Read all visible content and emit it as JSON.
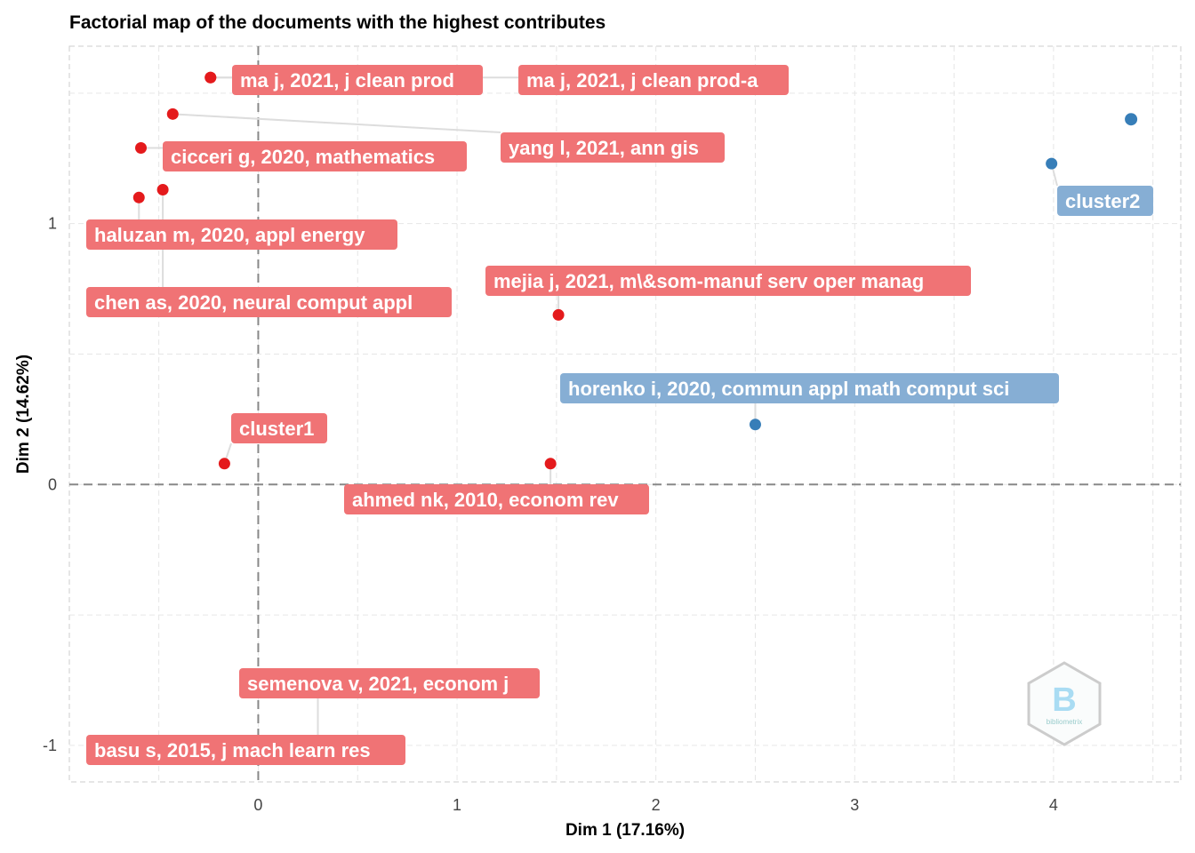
{
  "chart_data": {
    "type": "scatter",
    "title": "Factorial map of the documents with the highest contributes",
    "xlabel": "Dim 1 (17.16%)",
    "ylabel": "Dim 2 (14.62%)",
    "xlim": [
      -0.95,
      4.64
    ],
    "ylim": [
      -1.14,
      1.68
    ],
    "xticks": [
      0,
      1,
      2,
      3,
      4
    ],
    "yticks": [
      -1,
      0,
      1
    ],
    "grid": true,
    "colors": {
      "cluster1": "#E41A1C",
      "cluster2": "#377EB8",
      "label1": "#F07375",
      "label2": "#86AED4"
    },
    "points": [
      {
        "label": "ma j, 2021, j clean prod",
        "x": -0.24,
        "y": 1.56,
        "cluster": 1
      },
      {
        "label": "ma j, 2021, j clean prod-a",
        "x": -0.24,
        "y": 1.56,
        "cluster": 1
      },
      {
        "label": "yang l, 2021, ann gis",
        "x": -0.43,
        "y": 1.42,
        "cluster": 1
      },
      {
        "label": "cicceri g, 2020, mathematics",
        "x": -0.59,
        "y": 1.29,
        "cluster": 1
      },
      {
        "label": "haluzan m, 2020, appl energy",
        "x": -0.6,
        "y": 1.1,
        "cluster": 1
      },
      {
        "label": "chen as, 2020, neural comput appl",
        "x": -0.48,
        "y": 1.13,
        "cluster": 1
      },
      {
        "label": "mejia j, 2021, m\\&som-manuf serv oper manag",
        "x": 1.51,
        "y": 0.65,
        "cluster": 1
      },
      {
        "label": "horenko i, 2020, commun appl math comput sci",
        "x": 2.5,
        "y": 0.23,
        "cluster": 2
      },
      {
        "label": "cluster1",
        "x": -0.17,
        "y": 0.08,
        "cluster": 1
      },
      {
        "label": "ahmed nk, 2010, econom rev",
        "x": 1.47,
        "y": 0.08,
        "cluster": 1
      },
      {
        "label": "semenova v, 2021, econom j",
        "x": 0.3,
        "y": -1.02,
        "cluster": 1
      },
      {
        "label": "basu s, 2015, j mach learn res",
        "x": 0.3,
        "y": -1.02,
        "cluster": 1
      },
      {
        "label": "cluster2",
        "x": 3.99,
        "y": 1.23,
        "cluster": 2
      },
      {
        "label": "",
        "x": 4.39,
        "y": 1.4,
        "cluster": 2
      }
    ]
  }
}
